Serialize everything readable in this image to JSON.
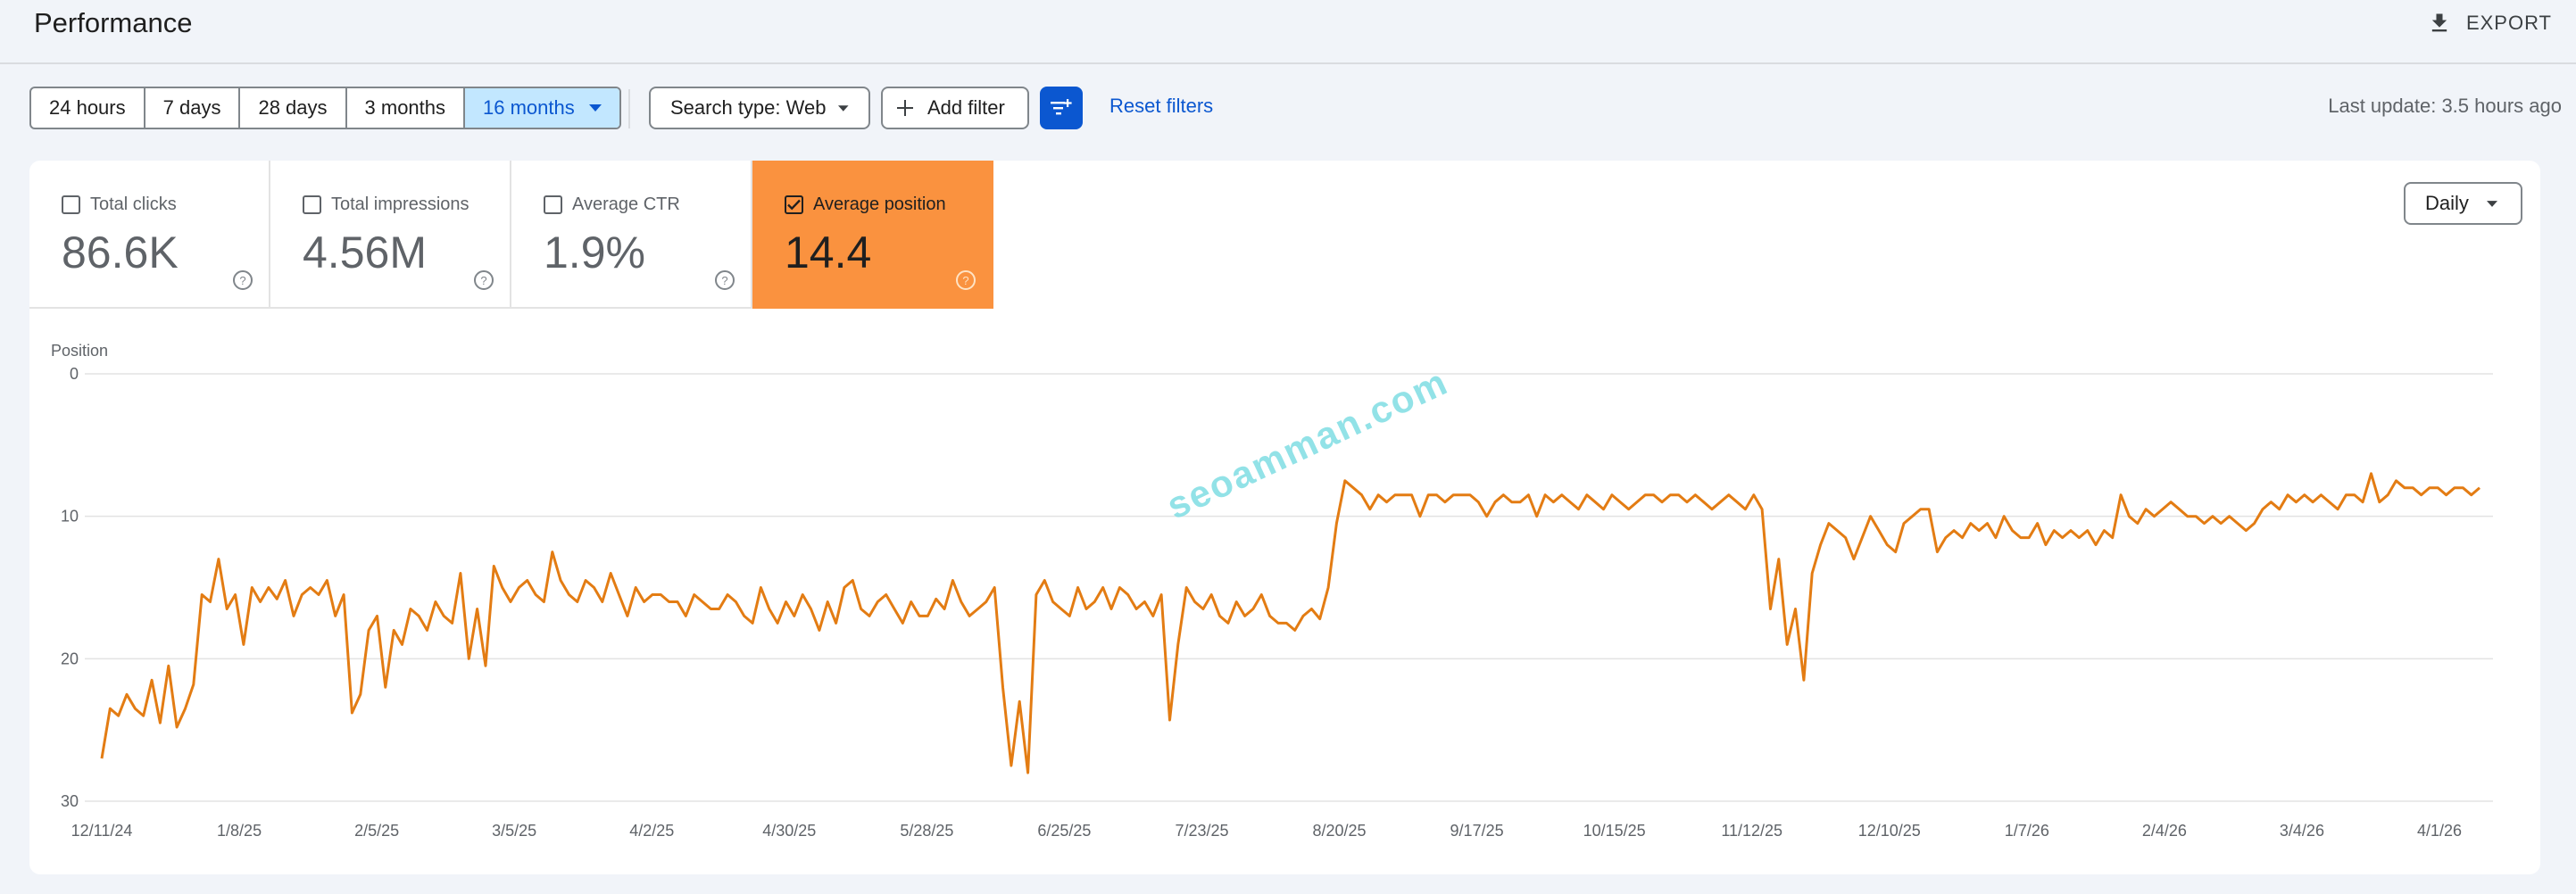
{
  "header": {
    "title": "Performance",
    "export_label": "EXPORT"
  },
  "date_ranges": [
    {
      "label": "24 hours",
      "active": false
    },
    {
      "label": "7 days",
      "active": false
    },
    {
      "label": "28 days",
      "active": false
    },
    {
      "label": "3 months",
      "active": false
    },
    {
      "label": "16 months",
      "active": true
    }
  ],
  "filters": {
    "search_type_label": "Search type: Web",
    "add_filter_label": "Add filter",
    "reset_label": "Reset filters"
  },
  "last_update": "Last update: 3.5 hours ago",
  "metrics": [
    {
      "label": "Total clicks",
      "value": "86.6K",
      "checked": false
    },
    {
      "label": "Total impressions",
      "value": "4.56M",
      "checked": false
    },
    {
      "label": "Average CTR",
      "value": "1.9%",
      "checked": false
    },
    {
      "label": "Average position",
      "value": "14.4",
      "checked": true
    }
  ],
  "granularity": "Daily",
  "watermark": "seoamman.com",
  "colors": {
    "accent": "#0b57d0",
    "position_metric": "#fa923f",
    "line": "#e37c13",
    "range_active_bg": "#c2e7ff"
  },
  "chart_data": {
    "type": "line",
    "ylabel": "Position",
    "y_inverted": true,
    "ylim": [
      0,
      30
    ],
    "y_ticks": [
      "0",
      "10",
      "20",
      "30"
    ],
    "x_tick_labels": [
      "12/11/24",
      "1/8/25",
      "2/5/25",
      "3/5/25",
      "4/2/25",
      "4/30/25",
      "5/28/25",
      "6/25/25",
      "7/23/25",
      "8/20/25",
      "9/17/25",
      "10/15/25",
      "11/12/25",
      "12/10/25",
      "1/7/26",
      "2/4/26",
      "3/4/26",
      "4/1/26"
    ],
    "grid": true,
    "series": [
      {
        "start_date": "12/11/24",
        "interval_days": 3,
        "values": [
          27,
          23.5,
          24,
          22.5,
          23.5,
          24,
          21.5,
          24.5,
          20.5,
          24.8,
          23.5,
          21.8,
          15.5,
          16,
          13,
          16.5,
          15.5,
          19,
          15,
          16,
          15,
          15.8,
          14.5,
          17,
          15.5,
          15,
          15.5,
          14.5,
          17,
          15.5,
          23.8,
          22.5,
          18,
          17,
          22,
          18,
          19,
          16.5,
          17,
          18,
          16,
          17,
          17.5,
          14,
          20,
          16.5,
          20.5,
          13.5,
          15,
          16,
          15,
          14.5,
          15.5,
          16,
          12.5,
          14.5,
          15.5,
          16,
          14.5,
          15,
          16,
          14,
          15.5,
          17,
          15,
          16,
          15.5,
          15.5,
          16,
          16,
          17,
          15.5,
          16,
          16.5,
          16.5,
          15.5,
          16,
          17,
          17.5,
          15,
          16.5,
          17.5,
          16,
          17,
          15.5,
          16.5,
          18,
          16,
          17.5,
          15,
          14.5,
          16.5,
          17,
          16,
          15.5,
          16.5,
          17.5,
          16,
          17,
          17,
          15.8,
          16.5,
          14.5,
          16,
          17,
          16.5,
          16,
          15,
          22,
          27.5,
          23,
          28,
          15.5,
          14.5,
          16,
          16.5,
          17,
          15,
          16.5,
          16,
          15,
          16.5,
          15,
          15.5,
          16.5,
          16,
          17,
          15.5,
          24.3,
          19,
          15,
          16,
          16.5,
          15.5,
          17,
          17.5,
          16,
          17,
          16.5,
          15.5,
          17,
          17.5,
          17.5,
          18,
          17,
          16.5,
          17.2,
          15,
          10.5,
          7.5,
          8,
          8.5,
          9.5,
          8.5,
          9,
          8.5,
          8.5,
          8.5,
          10,
          8.5,
          8.5,
          9,
          8.5,
          8.5,
          8.5,
          9,
          10,
          9,
          8.5,
          9,
          9,
          8.5,
          10,
          8.5,
          9,
          8.5,
          9,
          9.5,
          8.5,
          9,
          9.5,
          8.5,
          9,
          9.5,
          9,
          8.5,
          8.5,
          9,
          8.5,
          8.5,
          9,
          8.5,
          9,
          9.5,
          9,
          8.5,
          9,
          9.5,
          8.5,
          9.5,
          16.5,
          13,
          19,
          16.5,
          21.5,
          14,
          12,
          10.5,
          11,
          11.5,
          13,
          11.5,
          10,
          11,
          12,
          12.5,
          10.5,
          10,
          9.5,
          9.5,
          12.5,
          11.5,
          11,
          11.5,
          10.5,
          11,
          10.5,
          11.5,
          10,
          11,
          11.5,
          11.5,
          10.5,
          12,
          11,
          11.5,
          11,
          11.5,
          11,
          12,
          11,
          11.5,
          8.5,
          10,
          10.5,
          9.5,
          10,
          9.5,
          9,
          9.5,
          10,
          10,
          10.5,
          10,
          10.5,
          10,
          10.5,
          11,
          10.5,
          9.5,
          9,
          9.5,
          8.5,
          9,
          8.5,
          9,
          8.5,
          9,
          9.5,
          8.5,
          8.5,
          9,
          7,
          9,
          8.5,
          7.5,
          8,
          8,
          8.5,
          8,
          8,
          8.5,
          8,
          8,
          8.5,
          8
        ]
      }
    ]
  }
}
